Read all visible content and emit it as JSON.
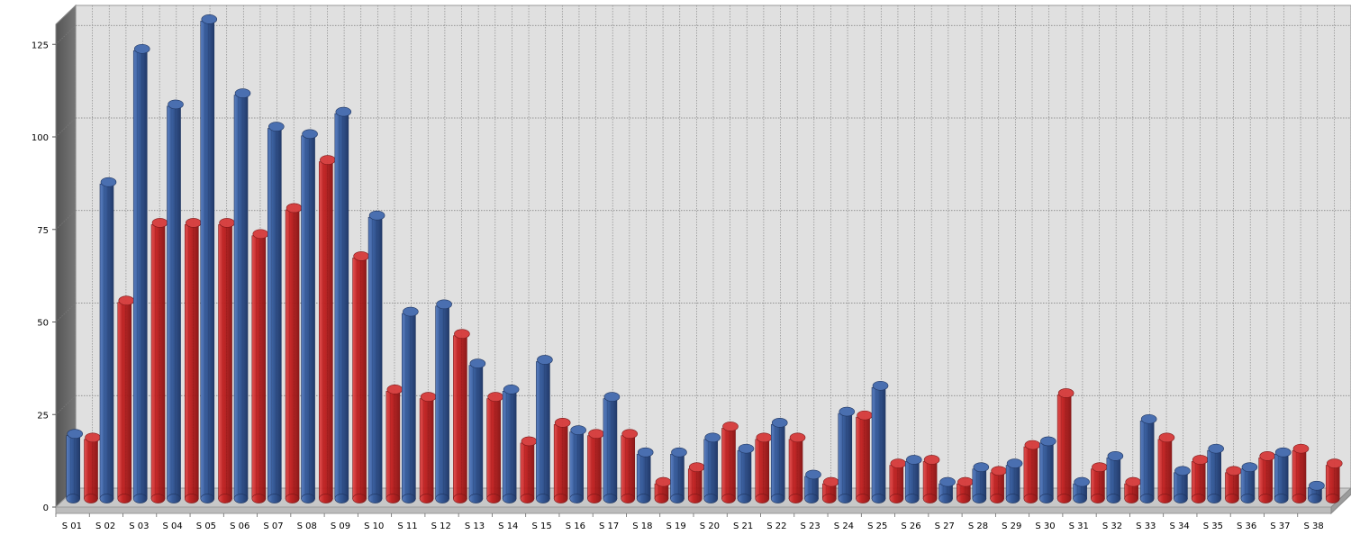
{
  "chart_data": {
    "type": "bar",
    "style": "3d-cylinder",
    "categories": [
      "S 01",
      "S 02",
      "S 03",
      "S 04",
      "S 05",
      "S 06",
      "S 07",
      "S 08",
      "S 09",
      "S 10",
      "S 11",
      "S 12",
      "S 13",
      "S 14",
      "S 15",
      "S 16",
      "S 17",
      "S 18",
      "S 19",
      "S 20",
      "S 21",
      "S 22",
      "S 23",
      "S 24",
      "S 25",
      "S 26",
      "S 27",
      "S 28",
      "S 29",
      "S 30",
      "S 31",
      "S 32",
      "S 33",
      "S 34",
      "S 35",
      "S 36",
      "S 37",
      "S 38"
    ],
    "series": [
      {
        "color": "#3a5f9e",
        "values": [
          17,
          85,
          121,
          106,
          129,
          109,
          100,
          98,
          104,
          76,
          50,
          52,
          36,
          29,
          37,
          18,
          27,
          12,
          12,
          16,
          13,
          20,
          6,
          23,
          30,
          10,
          4,
          8,
          9,
          15,
          4,
          11,
          21,
          7,
          13,
          8,
          12,
          3
        ]
      },
      {
        "color": "#cc2222",
        "values": [
          16,
          53,
          74,
          74,
          74,
          71,
          78,
          91,
          65,
          29,
          27,
          44,
          27,
          15,
          20,
          17,
          17,
          4,
          8,
          19,
          16,
          16,
          4,
          22,
          9,
          10,
          4,
          7,
          14,
          28,
          8,
          4,
          16,
          10,
          7,
          11,
          13,
          9
        ]
      }
    ],
    "yticks": [
      "0",
      "25",
      "50",
      "75",
      "100",
      "125"
    ],
    "ylim": [
      0,
      140
    ],
    "grid": true,
    "background": "#e0e0e0",
    "xlabel": "",
    "ylabel": "",
    "title": ""
  }
}
